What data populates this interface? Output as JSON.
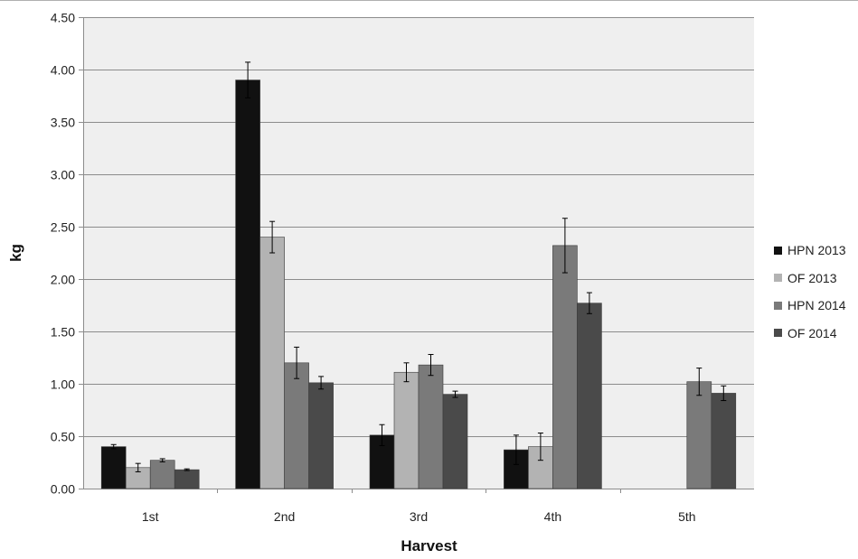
{
  "chart_data": {
    "type": "bar",
    "title": "",
    "xlabel": "Harvest",
    "ylabel": "kg",
    "ylim": [
      0,
      4.5
    ],
    "yticks": [
      "0.00",
      "0.50",
      "1.00",
      "1.50",
      "2.00",
      "2.50",
      "3.00",
      "3.50",
      "4.00",
      "4.50"
    ],
    "grid": true,
    "legend_position": "right",
    "categories": [
      "1st",
      "2nd",
      "3rd",
      "4th",
      "5th"
    ],
    "series": [
      {
        "name": "HPN 2013",
        "color": "#111111",
        "values": [
          0.4,
          3.9,
          0.51,
          0.37,
          null
        ],
        "errors": [
          0.02,
          0.17,
          0.1,
          0.14,
          null
        ]
      },
      {
        "name": "OF 2013",
        "color": "#b3b3b3",
        "values": [
          0.2,
          2.4,
          1.11,
          0.4,
          null
        ],
        "errors": [
          0.04,
          0.15,
          0.09,
          0.13,
          null
        ]
      },
      {
        "name": "HPN 2014",
        "color": "#7a7a7a",
        "values": [
          0.27,
          1.2,
          1.18,
          2.32,
          1.02
        ],
        "errors": [
          0.015,
          0.15,
          0.1,
          0.26,
          0.13
        ]
      },
      {
        "name": "OF 2014",
        "color": "#4a4a4a",
        "values": [
          0.18,
          1.01,
          0.9,
          1.77,
          0.91
        ],
        "errors": [
          0.008,
          0.06,
          0.03,
          0.1,
          0.07
        ]
      }
    ]
  }
}
